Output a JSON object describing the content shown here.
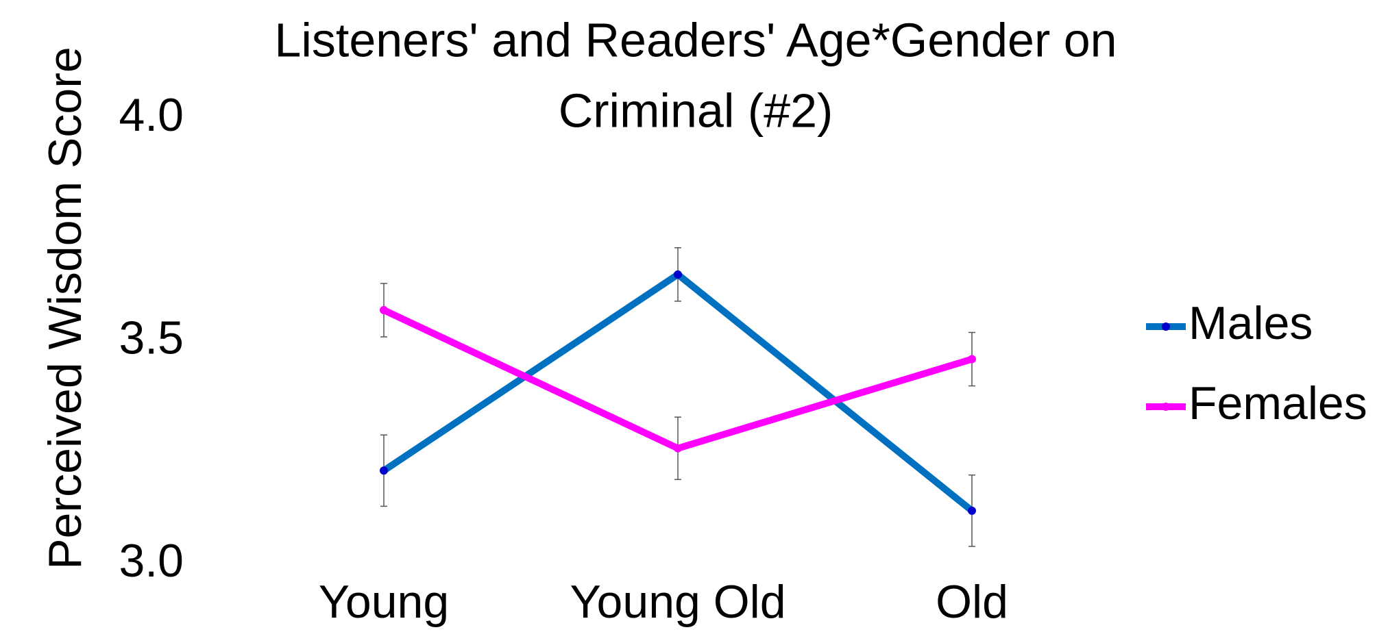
{
  "chart_data": {
    "type": "line",
    "title": [
      "Listeners' and Readers' Age*Gender on",
      "Criminal (#2)"
    ],
    "y_label": "Perceived Wisdom Score",
    "categories": [
      "Young",
      "Young Old",
      "Old"
    ],
    "series": [
      {
        "name": "Males",
        "color": "#0070c0",
        "marker_color": "#0000cc",
        "values": [
          3.21,
          3.65,
          3.12
        ],
        "errors": [
          0.08,
          0.06,
          0.08
        ]
      },
      {
        "name": "Females",
        "color": "#ff00ff",
        "marker_color": "#ff00ff",
        "values": [
          3.57,
          3.26,
          3.46
        ],
        "errors": [
          0.06,
          0.07,
          0.06
        ]
      }
    ],
    "ylim": [
      3.0,
      4.0
    ],
    "yticks": [
      {
        "value": 3.0,
        "label": "3.0"
      },
      {
        "value": 3.5,
        "label": "3.5"
      },
      {
        "value": 4.0,
        "label": "4.0"
      }
    ],
    "grid": false,
    "legend": "right"
  }
}
